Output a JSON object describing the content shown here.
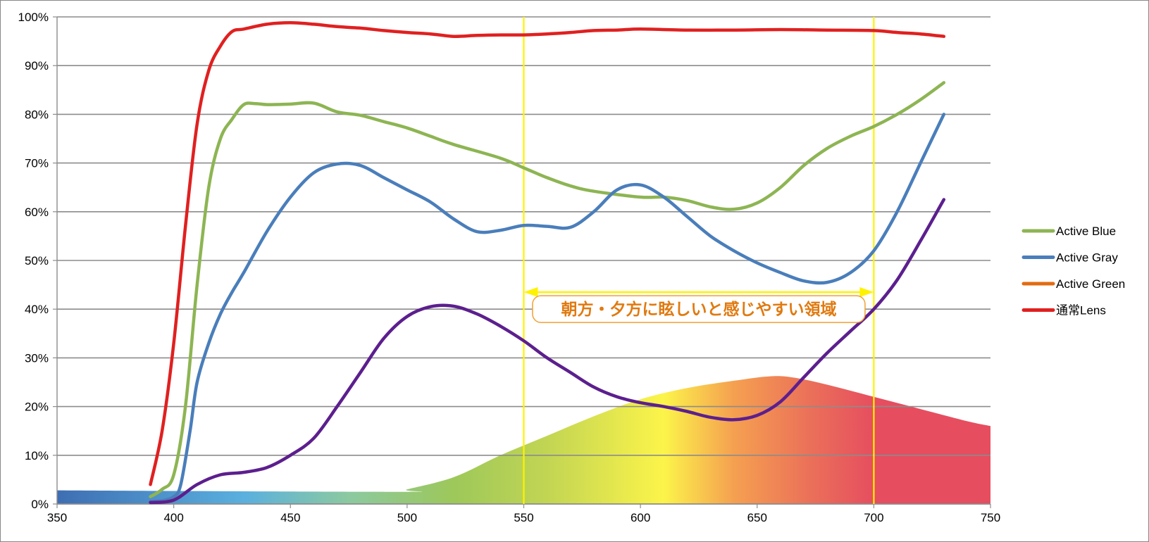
{
  "chart_data": {
    "type": "line",
    "title": "",
    "xlabel": "",
    "ylabel": "",
    "xlim": [
      350,
      750
    ],
    "ylim": [
      0,
      100
    ],
    "x_ticks": [
      350,
      400,
      450,
      500,
      550,
      600,
      650,
      700,
      750
    ],
    "x_tick_labels": [
      "350",
      "400",
      "450",
      "500",
      "550",
      "600",
      "650",
      "700",
      "750"
    ],
    "y_ticks": [
      0,
      10,
      20,
      30,
      40,
      50,
      60,
      70,
      80,
      90,
      100
    ],
    "y_tick_labels": [
      "0%",
      "10%",
      "20%",
      "30%",
      "40%",
      "50%",
      "60%",
      "70%",
      "80%",
      "90%",
      "100%"
    ],
    "grid": "horizontal",
    "legend_position": "right",
    "series": [
      {
        "name": "Active Blue",
        "color": "#8DB553",
        "points": [
          [
            390,
            1.5
          ],
          [
            395,
            3
          ],
          [
            400,
            6
          ],
          [
            405,
            20
          ],
          [
            410,
            45
          ],
          [
            415,
            65
          ],
          [
            420,
            75
          ],
          [
            425,
            79
          ],
          [
            430,
            82
          ],
          [
            435,
            82.2
          ],
          [
            440,
            82
          ],
          [
            450,
            82.1
          ],
          [
            460,
            82.3
          ],
          [
            470,
            80.5
          ],
          [
            480,
            79.8
          ],
          [
            490,
            78.5
          ],
          [
            500,
            77.2
          ],
          [
            510,
            75.5
          ],
          [
            520,
            73.8
          ],
          [
            540,
            71
          ],
          [
            550,
            69
          ],
          [
            560,
            67
          ],
          [
            570,
            65.3
          ],
          [
            580,
            64.2
          ],
          [
            600,
            63
          ],
          [
            610,
            63
          ],
          [
            620,
            62.3
          ],
          [
            630,
            61
          ],
          [
            640,
            60.5
          ],
          [
            650,
            61.8
          ],
          [
            660,
            65
          ],
          [
            670,
            69.5
          ],
          [
            680,
            73
          ],
          [
            690,
            75.5
          ],
          [
            700,
            77.5
          ],
          [
            710,
            80
          ],
          [
            720,
            83
          ],
          [
            730,
            86.5
          ]
        ]
      },
      {
        "name": "Active Gray",
        "color": "#4A7EBB",
        "points": [
          [
            390,
            0.5
          ],
          [
            395,
            0.7
          ],
          [
            400,
            1.5
          ],
          [
            403,
            4
          ],
          [
            407,
            15
          ],
          [
            410,
            25
          ],
          [
            415,
            33
          ],
          [
            420,
            39
          ],
          [
            425,
            43.5
          ],
          [
            430,
            47.5
          ],
          [
            440,
            56
          ],
          [
            450,
            63
          ],
          [
            460,
            68
          ],
          [
            470,
            69.8
          ],
          [
            480,
            69.5
          ],
          [
            490,
            67
          ],
          [
            500,
            64.5
          ],
          [
            510,
            62
          ],
          [
            520,
            58.5
          ],
          [
            530,
            55.9
          ],
          [
            540,
            56.2
          ],
          [
            550,
            57.2
          ],
          [
            560,
            57
          ],
          [
            570,
            56.8
          ],
          [
            580,
            60
          ],
          [
            590,
            64.5
          ],
          [
            600,
            65.5
          ],
          [
            610,
            63
          ],
          [
            620,
            59
          ],
          [
            630,
            55
          ],
          [
            640,
            52
          ],
          [
            650,
            49.5
          ],
          [
            660,
            47.5
          ],
          [
            670,
            45.8
          ],
          [
            680,
            45.5
          ],
          [
            690,
            47.5
          ],
          [
            700,
            52
          ],
          [
            710,
            60
          ],
          [
            720,
            70
          ],
          [
            730,
            80
          ]
        ]
      },
      {
        "name": "Active Green",
        "color": "#E26B10",
        "points": []
      },
      {
        "name": "通常Lens",
        "color": "#E02020",
        "points": [
          [
            390,
            4
          ],
          [
            395,
            15
          ],
          [
            400,
            33
          ],
          [
            405,
            57
          ],
          [
            410,
            78
          ],
          [
            415,
            89
          ],
          [
            420,
            94
          ],
          [
            425,
            97
          ],
          [
            430,
            97.5
          ],
          [
            440,
            98.5
          ],
          [
            450,
            98.8
          ],
          [
            460,
            98.5
          ],
          [
            470,
            98
          ],
          [
            480,
            97.7
          ],
          [
            490,
            97.2
          ],
          [
            500,
            96.8
          ],
          [
            510,
            96.5
          ],
          [
            520,
            96
          ],
          [
            530,
            96.2
          ],
          [
            540,
            96.3
          ],
          [
            550,
            96.3
          ],
          [
            560,
            96.5
          ],
          [
            570,
            96.8
          ],
          [
            580,
            97.2
          ],
          [
            590,
            97.3
          ],
          [
            600,
            97.5
          ],
          [
            620,
            97.3
          ],
          [
            640,
            97.3
          ],
          [
            660,
            97.4
          ],
          [
            680,
            97.3
          ],
          [
            700,
            97.2
          ],
          [
            710,
            96.8
          ],
          [
            720,
            96.5
          ],
          [
            730,
            96
          ]
        ]
      },
      {
        "name": "",
        "color": "#5C1F8E",
        "points": [
          [
            390,
            0.3
          ],
          [
            400,
            0.8
          ],
          [
            410,
            4
          ],
          [
            420,
            6
          ],
          [
            430,
            6.5
          ],
          [
            440,
            7.5
          ],
          [
            450,
            10
          ],
          [
            460,
            13.5
          ],
          [
            470,
            20
          ],
          [
            480,
            27
          ],
          [
            490,
            34
          ],
          [
            500,
            38.5
          ],
          [
            510,
            40.5
          ],
          [
            520,
            40.6
          ],
          [
            530,
            39
          ],
          [
            540,
            36.5
          ],
          [
            550,
            33.5
          ],
          [
            560,
            30
          ],
          [
            570,
            27
          ],
          [
            580,
            24
          ],
          [
            590,
            22
          ],
          [
            600,
            20.8
          ],
          [
            610,
            20
          ],
          [
            620,
            19
          ],
          [
            630,
            17.8
          ],
          [
            640,
            17.3
          ],
          [
            650,
            18.2
          ],
          [
            660,
            21
          ],
          [
            670,
            26
          ],
          [
            680,
            31
          ],
          [
            690,
            35.5
          ],
          [
            700,
            40
          ],
          [
            710,
            46
          ],
          [
            720,
            54
          ],
          [
            730,
            62.5
          ]
        ]
      }
    ],
    "spectrum_area": {
      "points": [
        [
          350,
          2.8
        ],
        [
          495,
          2.5
        ],
        [
          500,
          3
        ],
        [
          520,
          5.5
        ],
        [
          540,
          10
        ],
        [
          560,
          14
        ],
        [
          580,
          18
        ],
        [
          600,
          21.5
        ],
        [
          620,
          23.8
        ],
        [
          640,
          25.3
        ],
        [
          655,
          26.2
        ],
        [
          665,
          26
        ],
        [
          680,
          24.5
        ],
        [
          700,
          22
        ],
        [
          720,
          19.5
        ],
        [
          740,
          17
        ],
        [
          750,
          16
        ]
      ],
      "gradient_stops": [
        {
          "wavelength": 350,
          "color": "#3E6EB3"
        },
        {
          "wavelength": 430,
          "color": "#5AB0DF"
        },
        {
          "wavelength": 475,
          "color": "#8CC9A0"
        },
        {
          "wavelength": 520,
          "color": "#9DC85A"
        },
        {
          "wavelength": 560,
          "color": "#C2D553"
        },
        {
          "wavelength": 610,
          "color": "#FCF44A"
        },
        {
          "wavelength": 640,
          "color": "#F5A050"
        },
        {
          "wavelength": 675,
          "color": "#EA6D5A"
        },
        {
          "wavelength": 700,
          "color": "#E64E5F"
        },
        {
          "wavelength": 750,
          "color": "#E64E5F"
        }
      ]
    },
    "reference_lines": [
      {
        "x": 550,
        "color": "#FFF200"
      },
      {
        "x": 700,
        "color": "#FFF200"
      }
    ],
    "annotation": {
      "text": "朝方・夕方に眩しいと感じやすい領域",
      "x_start": 550,
      "x_end": 700,
      "arrow_y": 43.5,
      "text_y": 39,
      "text_color": "#E07A10",
      "arrow_color": "#FFF200"
    }
  }
}
